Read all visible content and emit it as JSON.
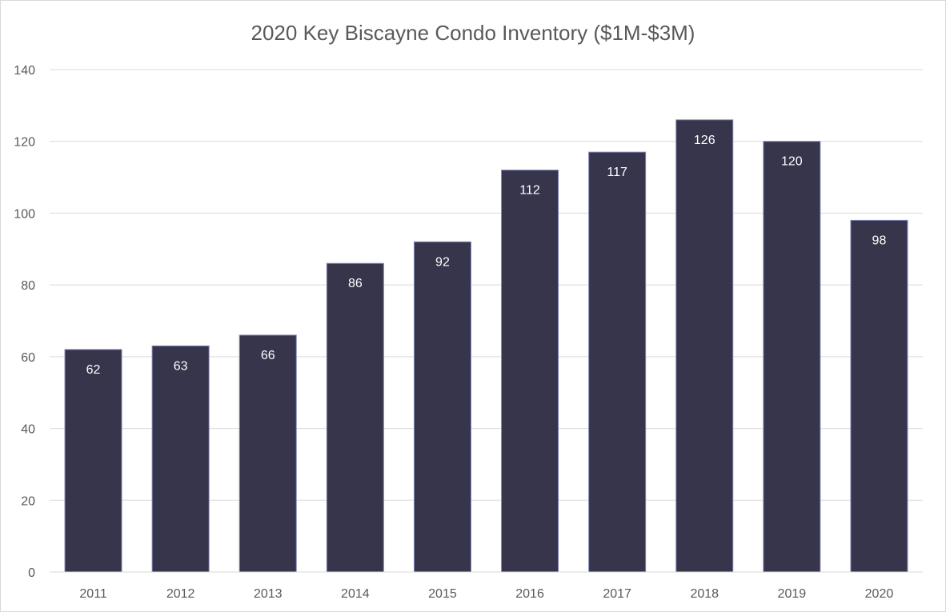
{
  "chart_data": {
    "type": "bar",
    "title": "2020 Key Biscayne Condo  Inventory ($1M-$3M)",
    "xlabel": "",
    "ylabel": "",
    "categories": [
      "2011",
      "2012",
      "2013",
      "2014",
      "2015",
      "2016",
      "2017",
      "2018",
      "2019",
      "2020"
    ],
    "values": [
      62,
      63,
      66,
      86,
      92,
      112,
      117,
      126,
      120,
      98
    ],
    "ylim": [
      0,
      140
    ],
    "yticks": [
      0,
      20,
      40,
      60,
      80,
      100,
      120,
      140
    ],
    "grid": true,
    "legend": "none",
    "colors": {
      "bar": "#37354b",
      "bar_edge": "#7f86b8",
      "grid": "#d9d9d9",
      "text": "#595959",
      "label": "#ffffff"
    }
  }
}
